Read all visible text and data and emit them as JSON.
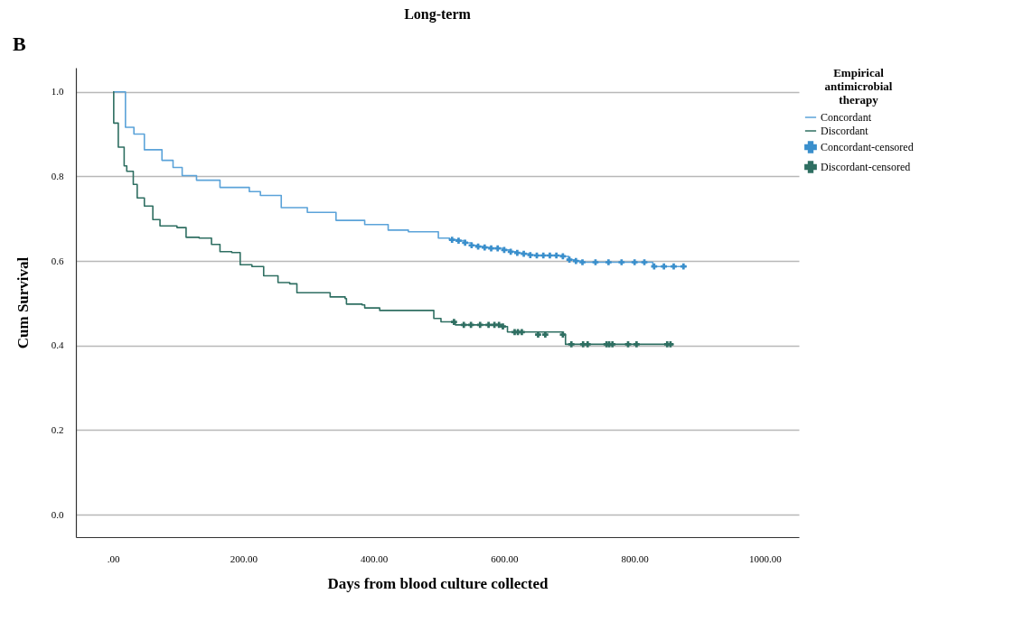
{
  "chart_data": {
    "type": "step",
    "title": "Long-term",
    "xlabel": "Days from blood culture collected",
    "ylabel": "Cum Survival",
    "legend_title": "Empirical antimicrobial therapy",
    "annotations": [
      "B"
    ],
    "xlim": [
      -57,
      1052
    ],
    "ylim": [
      -0.053,
      1.057
    ],
    "xticks": [
      {
        "value": 0,
        "label": ".00"
      },
      {
        "value": 200,
        "label": "200.00"
      },
      {
        "value": 400,
        "label": "400.00"
      },
      {
        "value": 600,
        "label": "600.00"
      },
      {
        "value": 800,
        "label": "800.00"
      },
      {
        "value": 1000,
        "label": "1000.00"
      }
    ],
    "yticks": [
      {
        "value": 0,
        "label": "0.0"
      },
      {
        "value": 0.2,
        "label": "0.2"
      },
      {
        "value": 0.4,
        "label": "0.4"
      },
      {
        "value": 0.6,
        "label": "0.6"
      },
      {
        "value": 0.8,
        "label": "0.8"
      },
      {
        "value": 1,
        "label": "1.0"
      }
    ],
    "grid": "y",
    "legend": "top right",
    "line_style": "solid",
    "series": [
      {
        "name": "Concordant",
        "color": "#5ba3d9",
        "x": [
          0,
          19,
          32,
          48,
          75,
          92,
          106,
          128,
          164,
          209,
          226,
          258,
          298,
          342,
          386,
          422,
          453,
          499,
          516,
          530,
          540,
          550,
          560,
          570,
          580,
          600,
          610,
          620,
          630,
          640,
          650,
          690,
          699,
          710,
          721,
          828,
          880
        ],
        "values": [
          1.0,
          0.916,
          0.9,
          0.863,
          0.838,
          0.821,
          0.802,
          0.791,
          0.774,
          0.764,
          0.755,
          0.726,
          0.715,
          0.696,
          0.686,
          0.673,
          0.669,
          0.654,
          0.65,
          0.648,
          0.643,
          0.637,
          0.634,
          0.632,
          0.63,
          0.626,
          0.622,
          0.619,
          0.617,
          0.614,
          0.613,
          0.611,
          0.603,
          0.6,
          0.597,
          0.587,
          0.587
        ]
      },
      {
        "name": "Discordant",
        "color": "#2f6f62",
        "x": [
          0,
          1,
          8,
          17,
          21,
          31,
          37,
          48,
          61,
          72,
          98,
          112,
          132,
          151,
          164,
          182,
          195,
          213,
          231,
          253,
          271,
          282,
          333,
          356,
          358,
          382,
          386,
          409,
          480,
          492,
          503,
          525,
          596,
          605,
          690,
          694,
          860
        ],
        "values": [
          1.0,
          0.926,
          0.869,
          0.825,
          0.812,
          0.781,
          0.749,
          0.73,
          0.698,
          0.683,
          0.679,
          0.656,
          0.654,
          0.639,
          0.622,
          0.62,
          0.591,
          0.587,
          0.565,
          0.549,
          0.546,
          0.525,
          0.515,
          0.511,
          0.498,
          0.496,
          0.489,
          0.483,
          0.483,
          0.464,
          0.456,
          0.449,
          0.445,
          0.432,
          0.426,
          0.403,
          0.403
        ]
      },
      {
        "name": "Concordant-censored",
        "type": "scatter",
        "marker": "cross",
        "color": "#3a8fcc",
        "x": [
          520,
          530,
          540,
          550,
          560,
          570,
          580,
          590,
          600,
          610,
          620,
          630,
          640,
          650,
          660,
          670,
          680,
          690,
          700,
          710,
          720,
          740,
          760,
          780,
          800,
          815,
          830,
          845,
          860,
          875
        ],
        "values": [
          0.65,
          0.648,
          0.643,
          0.637,
          0.634,
          0.632,
          0.63,
          0.63,
          0.626,
          0.622,
          0.619,
          0.617,
          0.614,
          0.613,
          0.613,
          0.613,
          0.613,
          0.611,
          0.603,
          0.6,
          0.597,
          0.597,
          0.597,
          0.597,
          0.597,
          0.597,
          0.587,
          0.587,
          0.587,
          0.587
        ]
      },
      {
        "name": "Discordant-censored",
        "type": "scatter",
        "marker": "cross",
        "color": "#2f6f62",
        "x": [
          523,
          538,
          549,
          563,
          576,
          585,
          592,
          598,
          616,
          621,
          627,
          652,
          663,
          690,
          703,
          721,
          728,
          757,
          761,
          766,
          790,
          803,
          850,
          855
        ],
        "values": [
          0.456,
          0.449,
          0.449,
          0.449,
          0.449,
          0.449,
          0.449,
          0.445,
          0.432,
          0.432,
          0.432,
          0.426,
          0.426,
          0.426,
          0.403,
          0.403,
          0.403,
          0.403,
          0.403,
          0.403,
          0.403,
          0.403,
          0.403,
          0.403
        ]
      }
    ]
  }
}
